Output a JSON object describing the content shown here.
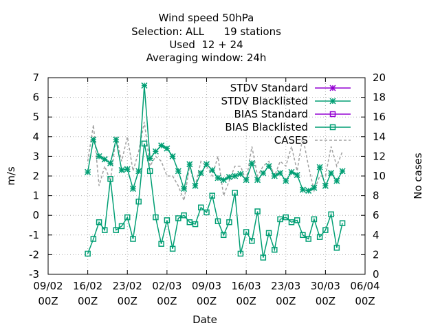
{
  "chart_data": {
    "type": "line",
    "title_lines": [
      "Wind speed 50hPa",
      "Selection: ALL      19 stations",
      "Used  12 + 24",
      "Averaging window: 24h"
    ],
    "xlabel": "Date",
    "ylabel_left": "m/s",
    "ylabel_right": "No cases",
    "ylim_left": [
      -3,
      7
    ],
    "ylim_right": [
      0,
      20
    ],
    "xlim_days": [
      0,
      56
    ],
    "grid": true,
    "legend_position": "top-right",
    "x_ticks": [
      {
        "line1": "09/02",
        "line2": "00Z"
      },
      {
        "line1": "16/02",
        "line2": "00Z"
      },
      {
        "line1": "23/02",
        "line2": "00Z"
      },
      {
        "line1": "02/03",
        "line2": "00Z"
      },
      {
        "line1": "09/03",
        "line2": "00Z"
      },
      {
        "line1": "16/03",
        "line2": "00Z"
      },
      {
        "line1": "23/03",
        "line2": "00Z"
      },
      {
        "line1": "30/03",
        "line2": "00Z"
      },
      {
        "line1": "06/04",
        "line2": "00Z"
      }
    ],
    "y_ticks_left": [
      "-3",
      "-2",
      "-1",
      "0",
      "1",
      "2",
      "3",
      "4",
      "5",
      "6",
      "7"
    ],
    "y_ticks_right": [
      "0",
      "2",
      "4",
      "6",
      "8",
      "10",
      "12",
      "14",
      "16",
      "18",
      "20"
    ],
    "legend": [
      {
        "label": "STDV Standard",
        "color": "#9400d3",
        "marker": "star"
      },
      {
        "label": "STDV Blacklisted",
        "color": "#009e73",
        "marker": "star"
      },
      {
        "label": "BIAS Standard",
        "color": "#9400d3",
        "marker": "square"
      },
      {
        "label": "BIAS Blacklisted",
        "color": "#009e73",
        "marker": "square"
      },
      {
        "label": "CASES",
        "color": "#a0a0a0",
        "marker": "dash"
      }
    ],
    "series": [
      {
        "name": "STDV Blacklisted",
        "axis": "left",
        "color": "#009e73",
        "marker": "star",
        "x": [
          7,
          8,
          9,
          10,
          11,
          12,
          13,
          14,
          15,
          16,
          17,
          18,
          19,
          20,
          21,
          22,
          23,
          24,
          25,
          26,
          27,
          28,
          29,
          30,
          31,
          32,
          33,
          34,
          35,
          36,
          37,
          38,
          39,
          40,
          41,
          42,
          43,
          44,
          45,
          46,
          47,
          48,
          49,
          50,
          51,
          52
        ],
        "y": [
          2.2,
          3.85,
          3.0,
          2.85,
          2.65,
          3.85,
          2.3,
          2.35,
          1.35,
          2.25,
          6.6,
          2.9,
          3.25,
          3.55,
          3.4,
          3.0,
          2.25,
          1.35,
          2.6,
          1.5,
          2.15,
          2.6,
          2.3,
          1.9,
          1.8,
          1.95,
          2.0,
          2.1,
          1.8,
          2.65,
          1.8,
          2.15,
          2.5,
          2.0,
          2.15,
          1.75,
          2.2,
          2.05,
          1.3,
          1.25,
          1.4,
          2.45,
          1.5,
          2.15,
          1.75,
          2.25
        ]
      },
      {
        "name": "BIAS Blacklisted",
        "axis": "left",
        "color": "#009e73",
        "marker": "square",
        "x": [
          7,
          8,
          9,
          10,
          11,
          12,
          13,
          14,
          15,
          16,
          17,
          18,
          19,
          20,
          21,
          22,
          23,
          24,
          25,
          26,
          27,
          28,
          29,
          30,
          31,
          32,
          33,
          34,
          35,
          36,
          37,
          38,
          39,
          40,
          41,
          42,
          43,
          44,
          45,
          46,
          47,
          48,
          49,
          50,
          51,
          52
        ],
        "y": [
          -1.95,
          -1.2,
          -0.35,
          -0.75,
          1.85,
          -0.75,
          -0.55,
          -0.1,
          -1.2,
          0.7,
          3.65,
          2.25,
          -0.1,
          -1.45,
          -0.25,
          -1.7,
          -0.15,
          0.0,
          -0.35,
          -0.45,
          0.4,
          0.15,
          1.0,
          -0.3,
          -1.0,
          -0.35,
          1.15,
          -1.95,
          -0.85,
          -1.3,
          0.2,
          -2.15,
          -0.9,
          -1.75,
          -0.2,
          -0.1,
          -0.35,
          -0.25,
          -1.0,
          -1.2,
          -0.2,
          -1.1,
          -0.75,
          0.05,
          -1.65,
          -0.4
        ]
      },
      {
        "name": "CASES",
        "axis": "right",
        "color": "#a0a0a0",
        "marker": "dash",
        "x": [
          7,
          8,
          9,
          10,
          11,
          12,
          13,
          14,
          15,
          16,
          17,
          18,
          19,
          20,
          21,
          22,
          23,
          24,
          25,
          26,
          27,
          28,
          29,
          30,
          31,
          32,
          33,
          34,
          35,
          36,
          37,
          38,
          39,
          40,
          41,
          42,
          43,
          44,
          45,
          46,
          47,
          48,
          49,
          50,
          51,
          52
        ],
        "y": [
          11.5,
          15.2,
          9.0,
          11.0,
          9.5,
          14.0,
          11.5,
          14.0,
          10.5,
          12.5,
          15.5,
          11.0,
          12.0,
          11.5,
          10.0,
          10.0,
          9.0,
          7.5,
          11.0,
          9.0,
          11.5,
          11.0,
          10.0,
          12.0,
          8.0,
          9.5,
          11.0,
          11.0,
          9.5,
          13.0,
          10.0,
          11.0,
          11.5,
          10.0,
          11.5,
          11.0,
          13.0,
          10.5,
          14.0,
          11.0,
          8.5,
          10.0,
          10.0,
          13.0,
          11.0,
          12.5
        ]
      }
    ]
  }
}
